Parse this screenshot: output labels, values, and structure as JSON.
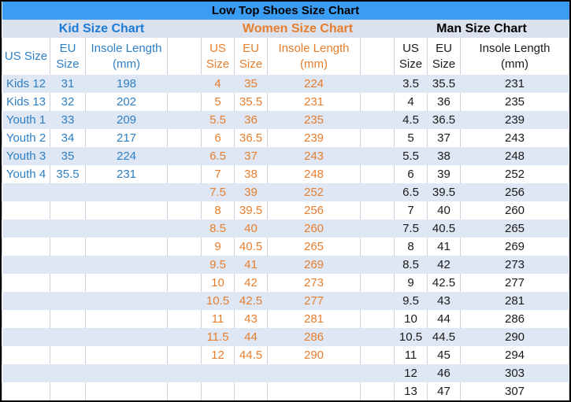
{
  "title": "Low Top Shoes Size Chart",
  "colors": {
    "title_bar_bg": "#3B9CF4",
    "section_header_bg": "#DBE2ED",
    "banded_row_bg": "#DEE7F3",
    "kid_accent": "#2E7FC4",
    "kid_section_label": "#1B7CD8",
    "women_accent": "#E67E2E",
    "man_text": "#1A1A1A",
    "gridline": "#CDD2DA",
    "outer_border": "#000000"
  },
  "sections": [
    {
      "id": "kid",
      "label": "Kid Size Chart",
      "columns": [
        {
          "l1": "US Size",
          "l2": ""
        },
        {
          "l1": "EU",
          "l2": "Size"
        },
        {
          "l1": "Insole Length",
          "l2": "(mm)"
        }
      ],
      "rows": [
        [
          "Kids 12",
          "31",
          "198"
        ],
        [
          "Kids 13",
          "32",
          "202"
        ],
        [
          "Youth 1",
          "33",
          "209"
        ],
        [
          "Youth 2",
          "34",
          "217"
        ],
        [
          "Youth 3",
          "35",
          "224"
        ],
        [
          "Youth 4",
          "35.5",
          "231"
        ]
      ]
    },
    {
      "id": "women",
      "label": "Women Size Chart",
      "columns": [
        {
          "l1": "US",
          "l2": "Size"
        },
        {
          "l1": "EU",
          "l2": "Size"
        },
        {
          "l1": "Insole Length",
          "l2": "(mm)"
        }
      ],
      "rows": [
        [
          "4",
          "35",
          "224"
        ],
        [
          "5",
          "35.5",
          "231"
        ],
        [
          "5.5",
          "36",
          "235"
        ],
        [
          "6",
          "36.5",
          "239"
        ],
        [
          "6.5",
          "37",
          "243"
        ],
        [
          "7",
          "38",
          "248"
        ],
        [
          "7.5",
          "39",
          "252"
        ],
        [
          "8",
          "39.5",
          "256"
        ],
        [
          "8.5",
          "40",
          "260"
        ],
        [
          "9",
          "40.5",
          "265"
        ],
        [
          "9.5",
          "41",
          "269"
        ],
        [
          "10",
          "42",
          "273"
        ],
        [
          "10.5",
          "42.5",
          "277"
        ],
        [
          "11",
          "43",
          "281"
        ],
        [
          "11.5",
          "44",
          "286"
        ],
        [
          "12",
          "44.5",
          "290"
        ]
      ]
    },
    {
      "id": "man",
      "label": "Man Size Chart",
      "columns": [
        {
          "l1": "US",
          "l2": "Size"
        },
        {
          "l1": "EU",
          "l2": "Size"
        },
        {
          "l1": "Insole Length",
          "l2": "(mm)"
        }
      ],
      "rows": [
        [
          "3.5",
          "35.5",
          "231"
        ],
        [
          "4",
          "36",
          "235"
        ],
        [
          "4.5",
          "36.5",
          "239"
        ],
        [
          "5",
          "37",
          "243"
        ],
        [
          "5.5",
          "38",
          "248"
        ],
        [
          "6",
          "39",
          "252"
        ],
        [
          "6.5",
          "39.5",
          "256"
        ],
        [
          "7",
          "40",
          "260"
        ],
        [
          "7.5",
          "40.5",
          "265"
        ],
        [
          "8",
          "41",
          "269"
        ],
        [
          "8.5",
          "42",
          "273"
        ],
        [
          "9",
          "42.5",
          "277"
        ],
        [
          "9.5",
          "43",
          "281"
        ],
        [
          "10",
          "44",
          "286"
        ],
        [
          "10.5",
          "44.5",
          "290"
        ],
        [
          "11",
          "45",
          "294"
        ],
        [
          "12",
          "46",
          "303"
        ],
        [
          "13",
          "47",
          "307"
        ]
      ]
    }
  ]
}
